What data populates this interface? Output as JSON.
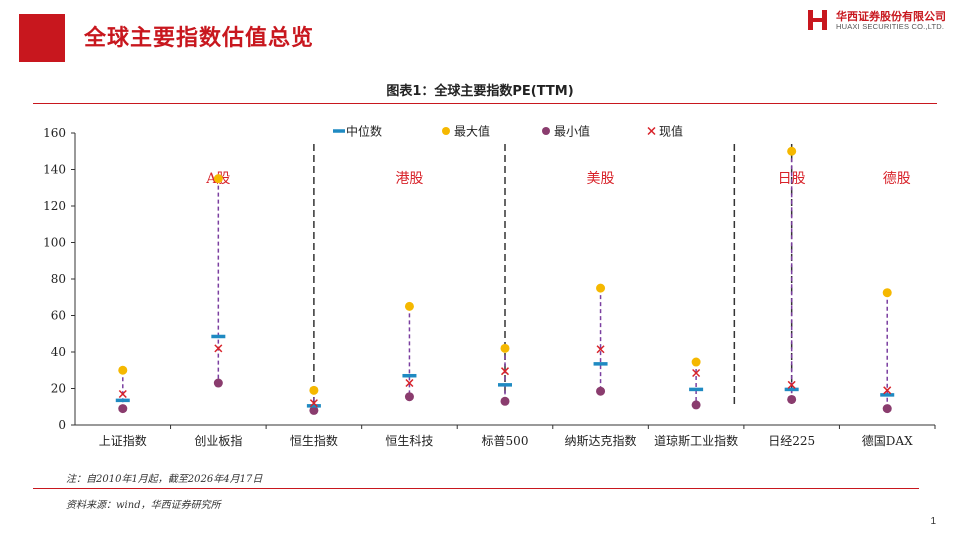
{
  "header": {
    "title": "全球主要指数估值总览",
    "logo_cn": "华西证券股份有限公司",
    "logo_en": "HUAXI SECURITIES CO.,LTD."
  },
  "colors": {
    "brand_red": "#c8171e",
    "median": "#1f8ac2",
    "max": "#f5b800",
    "min": "#8a3c6e",
    "current": "#d8232a",
    "whisker": "#7b3fa0",
    "label_red": "#d8232a"
  },
  "chart_data": {
    "type": "scatter",
    "title": "图表1：全球主要指数PE(TTM)",
    "categories": [
      "上证指数",
      "创业板指",
      "恒生指数",
      "恒生科技",
      "标普500",
      "纳斯达克指数",
      "道琼斯工业指数",
      "日经225",
      "德国DAX"
    ],
    "series": [
      {
        "name": "中位数",
        "marker": "dash",
        "values": [
          13.5,
          48.5,
          10.5,
          27.0,
          22.0,
          33.5,
          19.5,
          19.5,
          16.5
        ]
      },
      {
        "name": "最大值",
        "marker": "circle",
        "values": [
          30,
          135,
          19,
          65,
          42,
          75,
          34.5,
          150,
          72.5
        ]
      },
      {
        "name": "最小值",
        "marker": "circle",
        "values": [
          9,
          23,
          8,
          15.5,
          13,
          18.5,
          11,
          14,
          9
        ]
      },
      {
        "name": "现值",
        "marker": "x",
        "values": [
          17,
          42,
          12,
          23,
          29.5,
          41.5,
          28.5,
          22,
          19
        ]
      }
    ],
    "ylim": [
      0,
      160
    ],
    "yticks": [
      0,
      20,
      40,
      60,
      80,
      100,
      120,
      140,
      160
    ],
    "group_labels": [
      {
        "text": "A股",
        "at": 1
      },
      {
        "text": "港股",
        "at": 3
      },
      {
        "text": "美股",
        "at": 5
      },
      {
        "text": "日股",
        "at": 7
      },
      {
        "text": "德股",
        "at": 8.1
      }
    ],
    "group_dividers": [
      2.5,
      4.5,
      6.9,
      7.5
    ],
    "legend_position": "top"
  },
  "footer": {
    "note": "注：自2010年1月起，截至2026年4月17日",
    "source": "资料来源：wind，华西证券研究所",
    "page_number": "1"
  }
}
